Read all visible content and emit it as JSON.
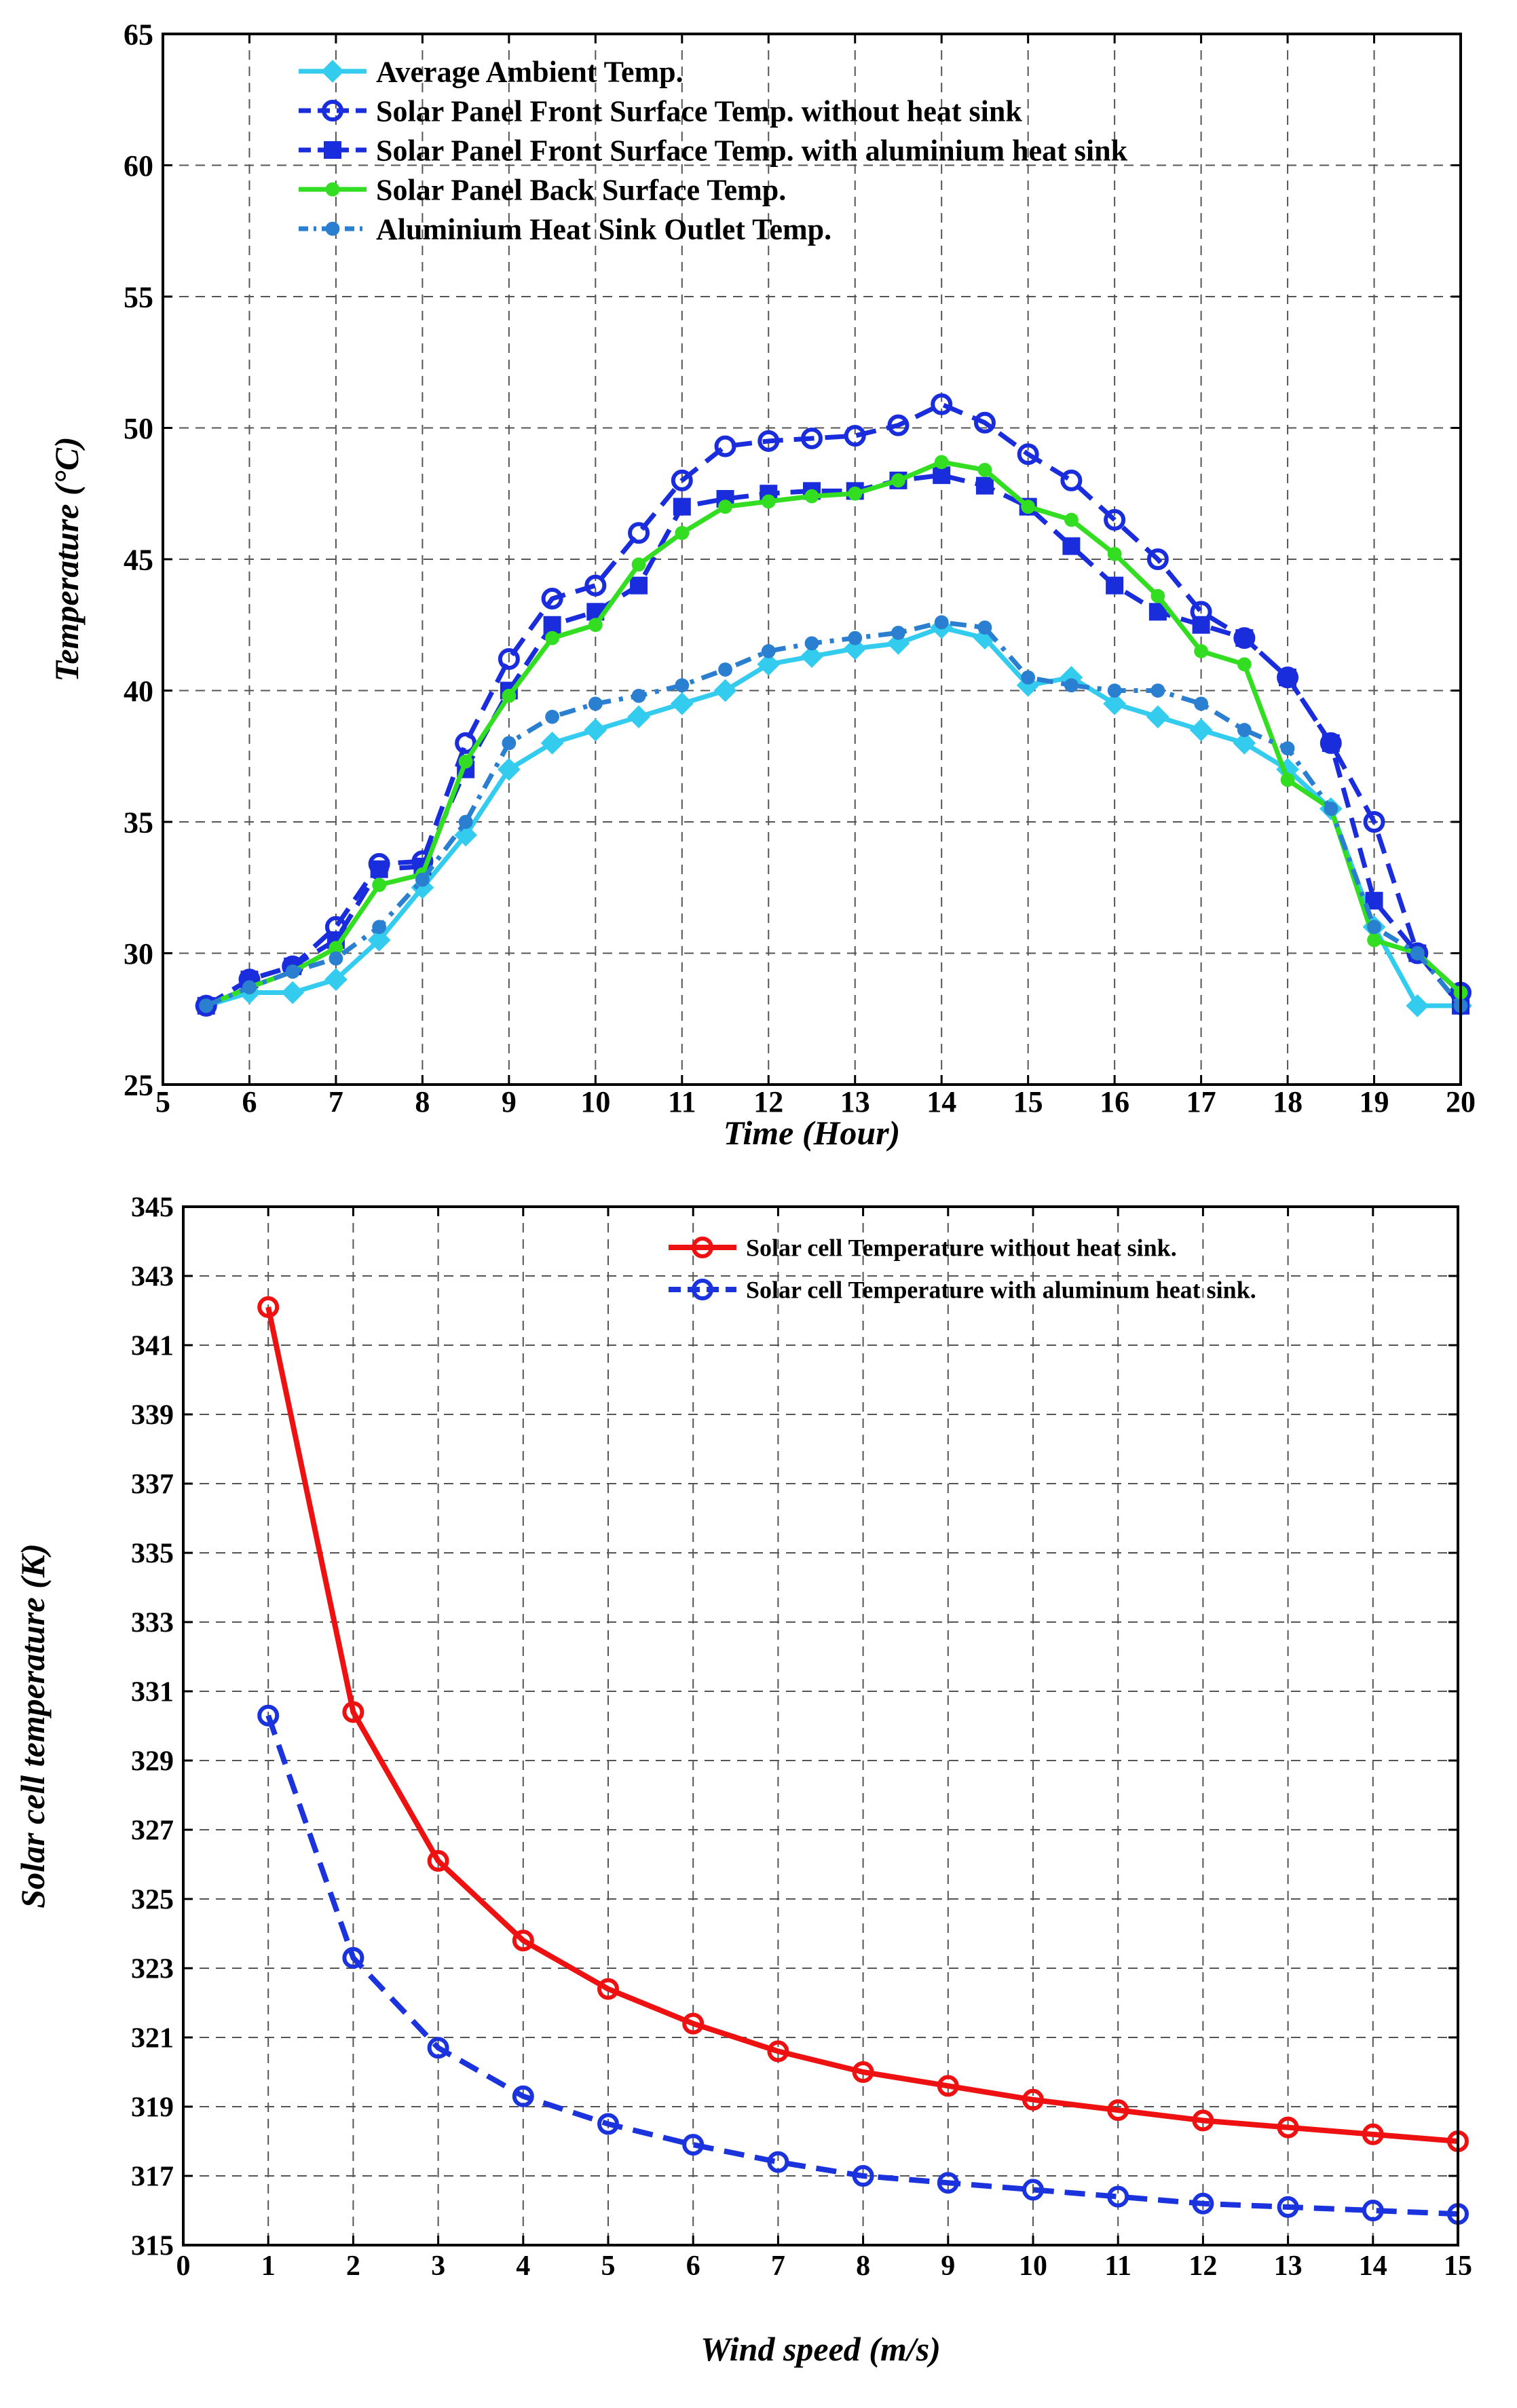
{
  "chart_data": [
    {
      "type": "line",
      "title": "",
      "xlabel": "Time (Hour)",
      "ylabel": "Temperature (°C)",
      "xlim": [
        5,
        20
      ],
      "ylim": [
        25,
        65
      ],
      "xticks": [
        5,
        6,
        7,
        8,
        9,
        10,
        11,
        12,
        13,
        14,
        15,
        16,
        17,
        18,
        19,
        20
      ],
      "yticks": [
        25,
        30,
        35,
        40,
        45,
        50,
        55,
        60,
        65
      ],
      "grid": true,
      "legend_position": "top-left",
      "x": [
        5.5,
        6,
        6.5,
        7,
        7.5,
        8,
        8.5,
        9,
        9.5,
        10,
        10.5,
        11,
        11.5,
        12,
        12.5,
        13,
        13.5,
        14,
        14.5,
        15,
        15.5,
        16,
        16.5,
        17,
        17.5,
        18,
        18.5,
        19,
        19.5,
        20
      ],
      "series": [
        {
          "name": "Average Ambient Temp.",
          "color": "#33ccee",
          "marker": "diamond",
          "dash": "solid",
          "values": [
            28,
            28.5,
            28.5,
            29,
            30.5,
            32.5,
            34.5,
            37,
            38,
            38.5,
            39,
            39.5,
            40,
            41,
            41.3,
            41.6,
            41.8,
            42.4,
            42,
            40.2,
            40.5,
            39.5,
            39,
            38.5,
            38,
            37,
            35.5,
            31,
            28,
            28
          ]
        },
        {
          "name": "Solar Panel Front Surface Temp. without heat sink",
          "color": "#1a2ddd",
          "marker": "circle",
          "dash": "dashed",
          "values": [
            28,
            29,
            29.5,
            31,
            33.4,
            33.5,
            38,
            41.2,
            43.5,
            44,
            46,
            48,
            49.3,
            49.5,
            49.6,
            49.7,
            50.1,
            50.9,
            50.2,
            49,
            48,
            46.5,
            45,
            43,
            42,
            40.5,
            38,
            35,
            30,
            28.5
          ]
        },
        {
          "name": "Solar Panel Front Surface Temp. with aluminium heat sink",
          "color": "#1a2ddd",
          "marker": "square",
          "dash": "dashed",
          "values": [
            28,
            29,
            29.5,
            30.5,
            33.2,
            33.3,
            37,
            40,
            42.5,
            43,
            44,
            47,
            47.3,
            47.5,
            47.6,
            47.6,
            48,
            48.2,
            47.8,
            47,
            45.5,
            44,
            43,
            42.5,
            42,
            40.5,
            38,
            32,
            30,
            28
          ]
        },
        {
          "name": "Solar Panel Back Surface Temp.",
          "color": "#33dd22",
          "marker": "dot",
          "dash": "solid",
          "values": [
            28,
            28.7,
            29.3,
            30.2,
            32.6,
            33,
            37.3,
            39.8,
            42,
            42.5,
            44.8,
            46,
            47,
            47.2,
            47.4,
            47.5,
            48,
            48.7,
            48.4,
            47,
            46.5,
            45.2,
            43.6,
            41.5,
            41,
            36.6,
            35.5,
            30.5,
            30,
            28.5
          ]
        },
        {
          "name": "Aluminium Heat Sink Outlet Temp.",
          "color": "#2a7fd0",
          "marker": "dot",
          "dash": "dashdot",
          "values": [
            28,
            28.7,
            29.3,
            29.8,
            31,
            32.8,
            35,
            38,
            39,
            39.5,
            39.8,
            40.2,
            40.8,
            41.5,
            41.8,
            42,
            42.2,
            42.6,
            42.4,
            40.5,
            40.2,
            40,
            40,
            39.5,
            38.5,
            37.8,
            35.5,
            31,
            30,
            28
          ]
        }
      ]
    },
    {
      "type": "line",
      "title": "",
      "xlabel": "Wind speed (m/s)",
      "ylabel": "Solar cell temperature (K)",
      "xlim": [
        0,
        15
      ],
      "ylim": [
        315,
        345
      ],
      "xticks": [
        0,
        1,
        2,
        3,
        4,
        5,
        6,
        7,
        8,
        9,
        10,
        11,
        12,
        13,
        14,
        15
      ],
      "yticks": [
        315,
        317,
        319,
        321,
        323,
        325,
        327,
        329,
        331,
        333,
        335,
        337,
        339,
        341,
        343,
        345
      ],
      "grid": true,
      "legend_position": "top-right",
      "x": [
        1,
        2,
        3,
        4,
        5,
        6,
        7,
        8,
        9,
        10,
        11,
        12,
        13,
        14,
        15
      ],
      "series": [
        {
          "name": "Solar cell Temperature without heat sink.",
          "color": "#ee1111",
          "marker": "circle",
          "dash": "solid",
          "values": [
            342.1,
            330.4,
            326.1,
            323.8,
            322.4,
            321.4,
            320.6,
            320.0,
            319.6,
            319.2,
            318.9,
            318.6,
            318.4,
            318.2,
            318.0
          ]
        },
        {
          "name": "Solar cell Temperature with aluminum heat sink.",
          "color": "#1a33dd",
          "marker": "circle",
          "dash": "dashed",
          "values": [
            330.3,
            323.3,
            320.7,
            319.3,
            318.5,
            317.9,
            317.4,
            317.0,
            316.8,
            316.6,
            316.4,
            316.2,
            316.1,
            316.0,
            315.9
          ]
        }
      ]
    }
  ]
}
